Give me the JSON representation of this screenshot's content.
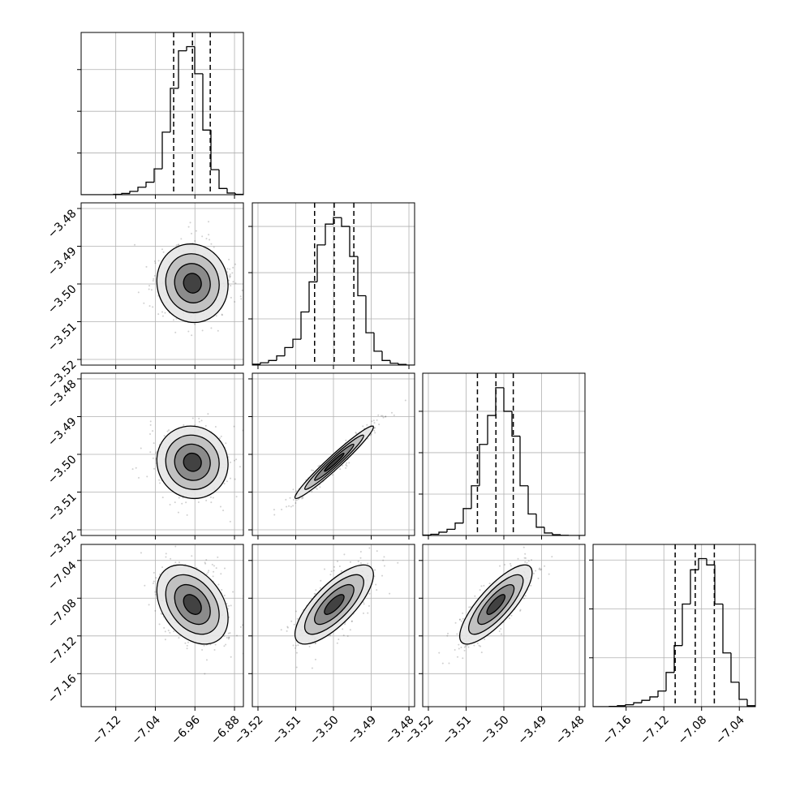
{
  "chart_data": {
    "type": "corner",
    "grid": true,
    "color": "#000000",
    "params": [
      {
        "lim": [
          -7.19,
          -6.862
        ],
        "ticks": [
          {
            "value": -7.12,
            "label": "−7.12"
          },
          {
            "value": -7.04,
            "label": "−7.04"
          },
          {
            "value": -6.96,
            "label": "−6.96"
          },
          {
            "value": -6.88,
            "label": "−6.88"
          }
        ],
        "bins": [
          -7.19,
          -7.1736,
          -7.1572,
          -7.1408,
          -7.1244,
          -7.108,
          -7.0916,
          -7.0752,
          -7.0588,
          -7.0424,
          -7.026,
          -7.0096,
          -6.9932,
          -6.9768,
          -6.9604,
          -6.944,
          -6.9276,
          -6.9112,
          -6.8948,
          -6.8784,
          -6.862
        ],
        "counts": [
          0,
          0,
          0,
          0,
          10,
          30,
          80,
          180,
          300,
          620,
          1500,
          2550,
          3450,
          3550,
          2900,
          1550,
          600,
          150,
          40,
          10
        ],
        "hist_ylim": [
          0,
          3890
        ],
        "hist_yticks": [
          1000,
          2000,
          3000
        ],
        "quantiles": [
          -7.003,
          -6.965,
          -6.929
        ]
      },
      {
        "lim": [
          -3.5215,
          -3.4785
        ],
        "ticks": [
          {
            "value": -3.52,
            "label": "−3.52"
          },
          {
            "value": -3.51,
            "label": "−3.51"
          },
          {
            "value": -3.5,
            "label": "−3.50"
          },
          {
            "value": -3.49,
            "label": "−3.49"
          },
          {
            "value": -3.48,
            "label": "−3.48"
          }
        ],
        "bins": [
          -3.5215,
          -3.51935,
          -3.5172,
          -3.51505,
          -3.5129,
          -3.51075,
          -3.5086,
          -3.50645,
          -3.5043,
          -3.50215,
          -3.5,
          -3.49785,
          -3.4957,
          -3.49355,
          -3.4914,
          -3.48925,
          -3.4871,
          -3.48495,
          -3.4828,
          -3.48065,
          -3.4785
        ],
        "counts": [
          20,
          50,
          100,
          200,
          380,
          560,
          1150,
          1800,
          2600,
          3050,
          3190,
          3000,
          2350,
          1500,
          700,
          300,
          100,
          40,
          15,
          0
        ],
        "hist_ylim": [
          0,
          3510
        ],
        "hist_yticks": [
          1000,
          2000,
          3000
        ],
        "quantiles": [
          -3.505,
          -3.4998,
          -3.4946
        ]
      },
      {
        "lim": [
          -3.5215,
          -3.4785
        ],
        "ticks": [
          {
            "value": -3.52,
            "label": "−3.52"
          },
          {
            "value": -3.51,
            "label": "−3.51"
          },
          {
            "value": -3.5,
            "label": "−3.50"
          },
          {
            "value": -3.49,
            "label": "−3.49"
          },
          {
            "value": -3.48,
            "label": "−3.48"
          }
        ],
        "bins": [
          -3.5215,
          -3.51935,
          -3.5172,
          -3.51505,
          -3.5129,
          -3.51075,
          -3.5086,
          -3.50645,
          -3.5043,
          -3.50215,
          -3.5,
          -3.49785,
          -3.4957,
          -3.49355,
          -3.4914,
          -3.48925,
          -3.4871,
          -3.48495,
          -3.4828,
          -3.48065,
          -3.4785
        ],
        "counts": [
          10,
          30,
          80,
          150,
          300,
          650,
          1200,
          2200,
          2900,
          3570,
          3000,
          2400,
          1200,
          520,
          200,
          60,
          20,
          5,
          0,
          0
        ],
        "hist_ylim": [
          0,
          3920
        ],
        "hist_yticks": [
          1000,
          2000,
          3000
        ],
        "quantiles": [
          -3.507,
          -3.5021,
          -3.4975
        ]
      },
      {
        "lim": [
          -7.195,
          -7.023
        ],
        "ticks": [
          {
            "value": -7.16,
            "label": "−7.16"
          },
          {
            "value": -7.12,
            "label": "−7.12"
          },
          {
            "value": -7.08,
            "label": "−7.08"
          },
          {
            "value": -7.04,
            "label": "−7.04"
          }
        ],
        "bins": [
          -7.195,
          -7.1864,
          -7.1778,
          -7.1692,
          -7.1606,
          -7.152,
          -7.1434,
          -7.1348,
          -7.1262,
          -7.1176,
          -7.109,
          -7.1004,
          -7.0918,
          -7.0832,
          -7.0746,
          -7.066,
          -7.0574,
          -7.0488,
          -7.0402,
          -7.0316,
          -7.023
        ],
        "counts": [
          0,
          0,
          5,
          20,
          40,
          80,
          130,
          200,
          320,
          700,
          1250,
          2100,
          2800,
          3030,
          2900,
          2100,
          1100,
          500,
          150,
          20
        ],
        "hist_ylim": [
          0,
          3320
        ],
        "hist_yticks": [
          1000,
          2000,
          3000
        ],
        "quantiles": [
          -7.108,
          -7.0867,
          -7.0665
        ]
      }
    ],
    "pairs": [
      {
        "x": 0,
        "y": 1,
        "mean": [
          -6.965,
          -3.4998
        ],
        "std": [
          0.036,
          0.0052
        ],
        "corr": -0.05
      },
      {
        "x": 0,
        "y": 2,
        "mean": [
          -6.965,
          -3.5021
        ],
        "std": [
          0.036,
          0.0048
        ],
        "corr": -0.05
      },
      {
        "x": 1,
        "y": 2,
        "mean": [
          -3.4998,
          -3.5021
        ],
        "std": [
          0.0052,
          0.0048
        ],
        "corr": 0.97
      },
      {
        "x": 0,
        "y": 3,
        "mean": [
          -6.965,
          -7.0867
        ],
        "std": [
          0.036,
          0.021
        ],
        "corr": -0.35
      },
      {
        "x": 1,
        "y": 3,
        "mean": [
          -3.4998,
          -7.0867
        ],
        "std": [
          0.0052,
          0.021
        ],
        "corr": 0.75
      },
      {
        "x": 2,
        "y": 3,
        "mean": [
          -3.5021,
          -7.0867
        ],
        "std": [
          0.0048,
          0.021
        ],
        "corr": 0.8
      }
    ]
  }
}
